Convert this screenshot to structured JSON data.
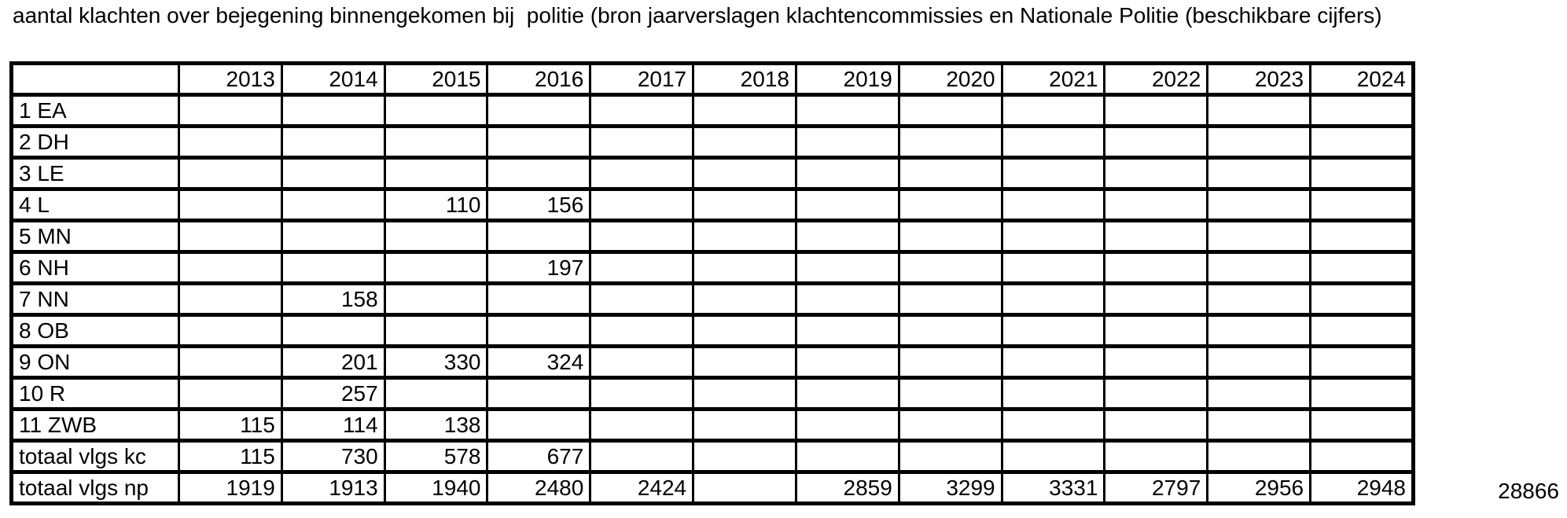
{
  "title": "aantal klachten over bejegening binnengekomen bij  politie (bron jaarverslagen klachtencommissies en Nationale Politie (beschikbare cijfers)",
  "colors": {
    "text": "#000000",
    "border": "#000000",
    "background": "#ffffff"
  },
  "table": {
    "corner_label": "",
    "year_headers": [
      "2013",
      "2014",
      "2015",
      "2016",
      "2017",
      "2018",
      "2019",
      "2020",
      "2021",
      "2022",
      "2023",
      "2024"
    ],
    "rows": [
      {
        "label": "1 EA",
        "values": [
          "",
          "",
          "",
          "",
          "",
          "",
          "",
          "",
          "",
          "",
          "",
          ""
        ]
      },
      {
        "label": "2 DH",
        "values": [
          "",
          "",
          "",
          "",
          "",
          "",
          "",
          "",
          "",
          "",
          "",
          ""
        ]
      },
      {
        "label": "3 LE",
        "values": [
          "",
          "",
          "",
          "",
          "",
          "",
          "",
          "",
          "",
          "",
          "",
          ""
        ]
      },
      {
        "label": "4 L",
        "values": [
          "",
          "",
          "110",
          "156",
          "",
          "",
          "",
          "",
          "",
          "",
          "",
          ""
        ]
      },
      {
        "label": "5 MN",
        "values": [
          "",
          "",
          "",
          "",
          "",
          "",
          "",
          "",
          "",
          "",
          "",
          ""
        ]
      },
      {
        "label": "6 NH",
        "values": [
          "",
          "",
          "",
          "197",
          "",
          "",
          "",
          "",
          "",
          "",
          "",
          ""
        ]
      },
      {
        "label": "7 NN",
        "values": [
          "",
          "158",
          "",
          "",
          "",
          "",
          "",
          "",
          "",
          "",
          "",
          ""
        ]
      },
      {
        "label": "8 OB",
        "values": [
          "",
          "",
          "",
          "",
          "",
          "",
          "",
          "",
          "",
          "",
          "",
          ""
        ]
      },
      {
        "label": "9 ON",
        "values": [
          "",
          "201",
          "330",
          "324",
          "",
          "",
          "",
          "",
          "",
          "",
          "",
          ""
        ]
      },
      {
        "label": "10 R",
        "values": [
          "",
          "257",
          "",
          "",
          "",
          "",
          "",
          "",
          "",
          "",
          "",
          ""
        ]
      },
      {
        "label": "11 ZWB",
        "values": [
          "115",
          "114",
          "138",
          "",
          "",
          "",
          "",
          "",
          "",
          "",
          "",
          ""
        ]
      },
      {
        "label": "totaal vlgs kc",
        "values": [
          "115",
          "730",
          "578",
          "677",
          "",
          "",
          "",
          "",
          "",
          "",
          "",
          ""
        ]
      },
      {
        "label": "totaal vlgs np",
        "values": [
          "1919",
          "1913",
          "1940",
          "2480",
          "2424",
          "",
          "2859",
          "3299",
          "3331",
          "2797",
          "2956",
          "2948"
        ]
      }
    ],
    "grand_total": "28866"
  }
}
